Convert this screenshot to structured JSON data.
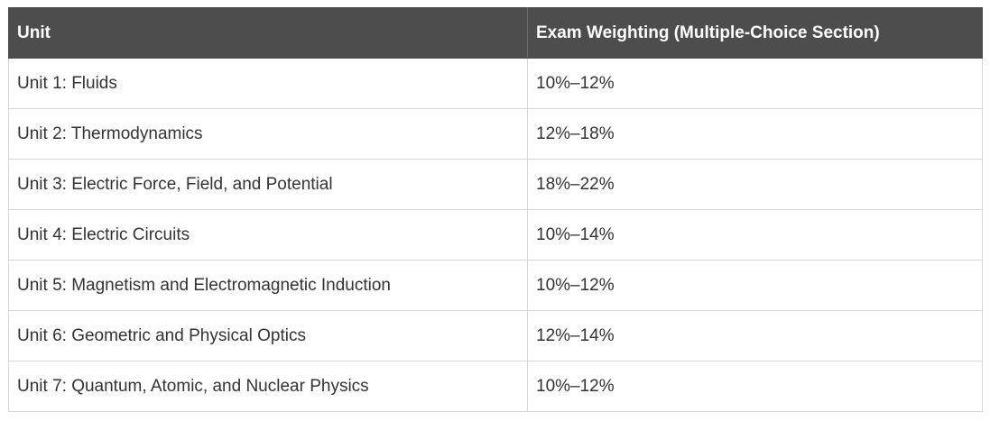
{
  "table": {
    "headers": [
      "Unit",
      "Exam Weighting (Multiple-Choice Section)"
    ],
    "rows": [
      [
        "Unit 1: Fluids",
        "10%–12%"
      ],
      [
        "Unit 2: Thermodynamics",
        "12%–18%"
      ],
      [
        "Unit 3: Electric Force, Field, and Potential",
        "18%–22%"
      ],
      [
        "Unit 4: Electric Circuits",
        "10%–14%"
      ],
      [
        "Unit 5: Magnetism and Electromagnetic Induction",
        "10%–12%"
      ],
      [
        "Unit 6: Geometric and Physical Optics",
        "12%–14%"
      ],
      [
        "Unit 7: Quantum, Atomic, and Nuclear Physics",
        "10%–12%"
      ]
    ]
  },
  "colors": {
    "header_bg": "#4d4d4d",
    "header_text": "#ffffff",
    "body_text": "#333333",
    "border": "#d6d6d6"
  }
}
